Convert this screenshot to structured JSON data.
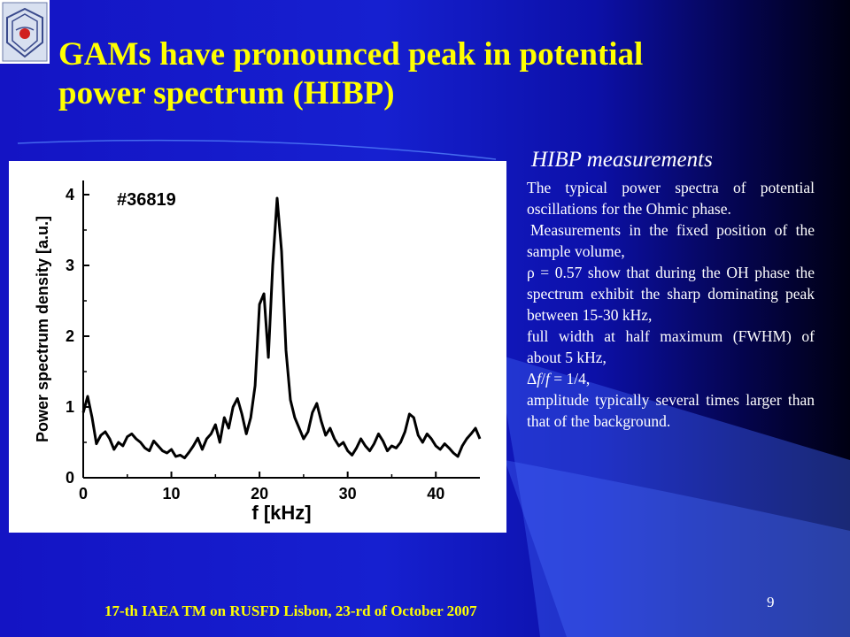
{
  "slide": {
    "title_line1": "GAMs have pronounced peak in potential",
    "title_line2": "power spectrum (HIBP)",
    "heading": "HIBP measurements",
    "paragraphs": {
      "p1": "The typical power spectra of potential oscillations for the Ohmic phase.",
      "p2": "Measurements in the fixed position of the sample volume,",
      "p3_symbol": "ρ",
      "p3_rest": " = 0.57 show that during the OH phase the spectrum exhibit the sharp dominating peak between 15-30 kHz,",
      "p4": "full width at half maximum (FWHM) of about 5 kHz,",
      "p5_delta": "Δ",
      "p5_f1": "f",
      "p5_slash": "/",
      "p5_f2": "f",
      "p5_rest": " = 1/4,",
      "p6": "amplitude typically several times larger than that of the background."
    },
    "footer": "17-th IAEA TM on RUSFD Lisbon, 23-rd of October 2007",
    "page_number": "9"
  },
  "colors": {
    "title": "#ffff00",
    "text": "#ffffff",
    "footer": "#ffff00",
    "background_left": "#1414c4",
    "background_right": "#000012",
    "curve": "#000000"
  },
  "icons": {
    "logo": "institute-logo"
  },
  "chart_data": {
    "type": "line",
    "title": "",
    "annotation": "#36819",
    "xlabel": "f [kHz]",
    "ylabel": "Power spectrum density [a.u.]",
    "xlim": [
      0,
      45
    ],
    "ylim": [
      0,
      4.2
    ],
    "xticks": [
      "0",
      "10",
      "20",
      "30",
      "40"
    ],
    "yticks": [
      "0",
      "1",
      "2",
      "3",
      "4"
    ],
    "grid": false,
    "series": [
      {
        "x": [
          0,
          0.5,
          1,
          1.5,
          2,
          2.5,
          3,
          3.5,
          4,
          4.5,
          5,
          5.5,
          6,
          6.5,
          7,
          7.5,
          8,
          8.5,
          9,
          9.5,
          10,
          10.5,
          11,
          11.5,
          12,
          12.5,
          13,
          13.5,
          14,
          14.5,
          15,
          15.5,
          16,
          16.5,
          17,
          17.5,
          18,
          18.5,
          19,
          19.5,
          20,
          20.5,
          21,
          21.5,
          22,
          22.5,
          23,
          23.5,
          24,
          24.5,
          25,
          25.5,
          26,
          26.5,
          27,
          27.5,
          28,
          28.5,
          29,
          29.5,
          30,
          30.5,
          31,
          31.5,
          32,
          32.5,
          33,
          33.5,
          34,
          34.5,
          35,
          35.5,
          36,
          36.5,
          37,
          37.5,
          38,
          38.5,
          39,
          39.5,
          40,
          40.5,
          41,
          41.5,
          42,
          42.5,
          43,
          43.5,
          44,
          44.5,
          45
        ],
        "y": [
          0.92,
          1.15,
          0.85,
          0.48,
          0.6,
          0.65,
          0.55,
          0.4,
          0.5,
          0.45,
          0.58,
          0.62,
          0.55,
          0.5,
          0.42,
          0.38,
          0.52,
          0.45,
          0.38,
          0.35,
          0.4,
          0.3,
          0.32,
          0.28,
          0.36,
          0.45,
          0.56,
          0.4,
          0.55,
          0.62,
          0.75,
          0.5,
          0.85,
          0.7,
          1.0,
          1.12,
          0.9,
          0.62,
          0.85,
          1.3,
          2.45,
          2.6,
          1.7,
          3.0,
          3.95,
          3.2,
          1.8,
          1.1,
          0.85,
          0.7,
          0.55,
          0.65,
          0.92,
          1.05,
          0.8,
          0.6,
          0.7,
          0.55,
          0.45,
          0.5,
          0.38,
          0.32,
          0.42,
          0.55,
          0.45,
          0.38,
          0.48,
          0.62,
          0.52,
          0.38,
          0.45,
          0.42,
          0.5,
          0.65,
          0.9,
          0.85,
          0.6,
          0.5,
          0.62,
          0.55,
          0.45,
          0.4,
          0.48,
          0.42,
          0.35,
          0.3,
          0.45,
          0.55,
          0.62,
          0.7,
          0.55
        ]
      }
    ]
  }
}
